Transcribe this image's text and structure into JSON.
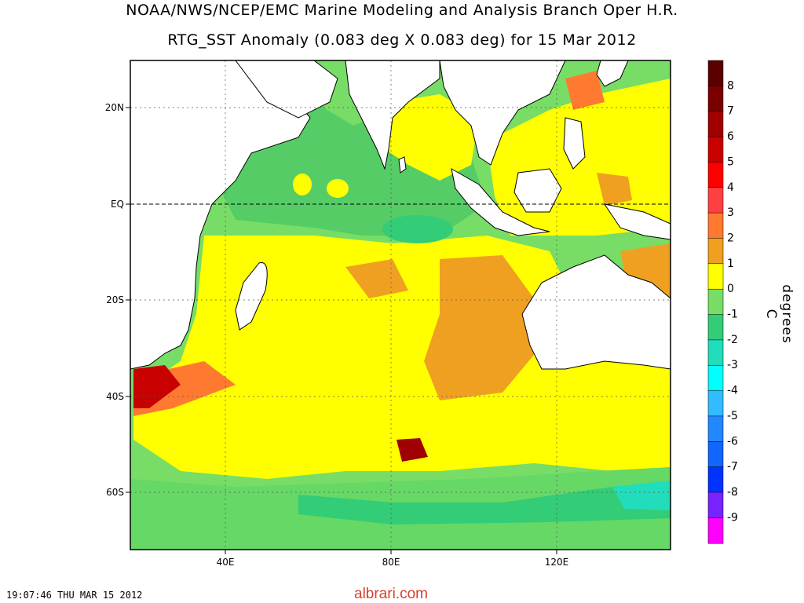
{
  "title_line1": "NOAA/NWS/NCEP/EMC Marine Modeling and Analysis Branch Oper H.R.",
  "title_line2": "RTG_SST Anomaly (0.083 deg X 0.083 deg) for 15 Mar 2012",
  "axes": {
    "lat_labels": [
      "20N",
      "EQ",
      "20S",
      "40S",
      "60S"
    ],
    "lon_labels": [
      "40E",
      "80E",
      "120E"
    ]
  },
  "colorbar": {
    "units": "degrees C",
    "labels": [
      "8",
      "7",
      "6",
      "5",
      "4",
      "3",
      "2",
      "1",
      "0",
      "-1",
      "-2",
      "-3",
      "-4",
      "-5",
      "-6",
      "-7",
      "-8",
      "-9"
    ],
    "colors": [
      "#5a0000",
      "#7a0000",
      "#a00000",
      "#c80000",
      "#ff0000",
      "#ff4040",
      "#ff7a30",
      "#f0a020",
      "#ffff00",
      "#77dd66",
      "#33cc77",
      "#22ddbb",
      "#00ffff",
      "#33bbff",
      "#2288ff",
      "#1166ff",
      "#0033ff",
      "#7722ff",
      "#ff00ff"
    ]
  },
  "timestamp": "19:07:46  THU MAR 15 2012",
  "watermark": "albrari.com"
}
